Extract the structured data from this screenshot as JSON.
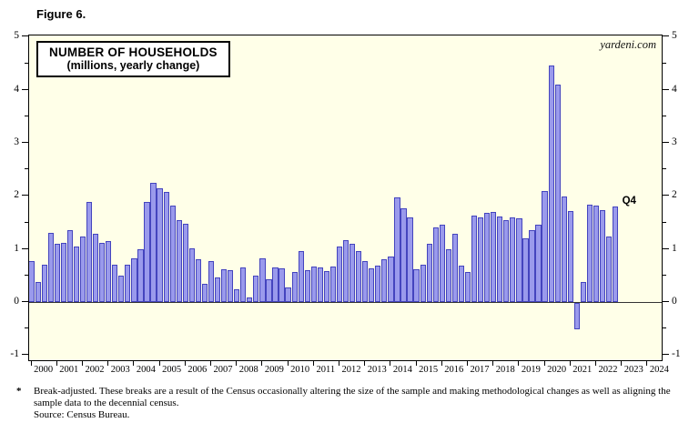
{
  "figure_label": "Figure 6.",
  "watermark": "yardeni.com",
  "title": {
    "line1": "NUMBER OF HOUSEHOLDS",
    "line2": "(millions, yearly change)"
  },
  "annotation": {
    "last_point_label": "Q4"
  },
  "footnote": {
    "marker": "*",
    "text": "Break-adjusted. These breaks are a result of the Census occasionally altering the size of the sample and making methodological changes as well as aligning the sample data to the decennial census.",
    "source": "Source: Census Bureau."
  },
  "colors": {
    "plot_background": "#FFFFE8",
    "bar_fill": "#9A9AEC",
    "bar_border": "#4444BE",
    "axis": "#000000"
  },
  "chart_data": {
    "type": "bar",
    "title": "NUMBER OF HOUSEHOLDS (millions, yearly change)",
    "ylabel": "millions, yearly change",
    "frequency": "quarterly",
    "ylim": [
      -1.13,
      5.02
    ],
    "y_ticks": [
      -1,
      0,
      1,
      2,
      3,
      4,
      5
    ],
    "y_minor_ticks": [
      -0.5,
      0.5,
      1.5,
      2.5,
      3.5,
      4.5
    ],
    "x_tick_years": [
      "2000",
      "2001",
      "2002",
      "2003",
      "2004",
      "2005",
      "2006",
      "2007",
      "2008",
      "2009",
      "2010",
      "2011",
      "2012",
      "2013",
      "2014",
      "2015",
      "2016",
      "2017",
      "2018",
      "2019",
      "2020",
      "2021",
      "2022",
      "2023",
      "2024"
    ],
    "grid": false,
    "legend": "none",
    "last_point_label": "Q4",
    "quarters": [
      {
        "year": 2000,
        "values": [
          0.78,
          0.38,
          0.7,
          1.31
        ]
      },
      {
        "year": 2001,
        "values": [
          1.1,
          1.12,
          1.35,
          1.05
        ]
      },
      {
        "year": 2002,
        "values": [
          1.24,
          1.88,
          1.28,
          1.12
        ]
      },
      {
        "year": 2003,
        "values": [
          1.15,
          0.7,
          0.5,
          0.71
        ]
      },
      {
        "year": 2004,
        "values": [
          0.83,
          1.0,
          1.88,
          2.24
        ]
      },
      {
        "year": 2005,
        "values": [
          2.15,
          2.07,
          1.81,
          1.55
        ]
      },
      {
        "year": 2006,
        "values": [
          1.48,
          1.02,
          0.81,
          0.34
        ]
      },
      {
        "year": 2007,
        "values": [
          0.77,
          0.46,
          0.62,
          0.6
        ]
      },
      {
        "year": 2008,
        "values": [
          0.24,
          0.66,
          0.08,
          0.5
        ]
      },
      {
        "year": 2009,
        "values": [
          0.83,
          0.43,
          0.66,
          0.63
        ]
      },
      {
        "year": 2010,
        "values": [
          0.27,
          0.57,
          0.96,
          0.6
        ]
      },
      {
        "year": 2011,
        "values": [
          0.67,
          0.66,
          0.58,
          0.67
        ]
      },
      {
        "year": 2012,
        "values": [
          1.04,
          1.17,
          1.1,
          0.96
        ]
      },
      {
        "year": 2013,
        "values": [
          0.78,
          0.64,
          0.69,
          0.8
        ]
      },
      {
        "year": 2014,
        "values": [
          0.86,
          1.97,
          1.77,
          1.6
        ]
      },
      {
        "year": 2015,
        "values": [
          0.61,
          0.7,
          1.1,
          1.4
        ]
      },
      {
        "year": 2016,
        "values": [
          1.45,
          1.0,
          1.29,
          0.69
        ]
      },
      {
        "year": 2017,
        "values": [
          0.56,
          1.63,
          1.6,
          1.68
        ]
      },
      {
        "year": 2018,
        "values": [
          1.7,
          1.62,
          1.55,
          1.6
        ]
      },
      {
        "year": 2019,
        "values": [
          1.58,
          1.2,
          1.36,
          1.46
        ]
      },
      {
        "year": 2020,
        "values": [
          2.09,
          4.45,
          4.1,
          1.99
        ]
      },
      {
        "year": 2021,
        "values": [
          1.71,
          -0.49,
          0.38,
          1.83
        ]
      },
      {
        "year": 2022,
        "values": [
          1.81,
          1.74,
          1.23,
          1.8
        ]
      }
    ]
  }
}
